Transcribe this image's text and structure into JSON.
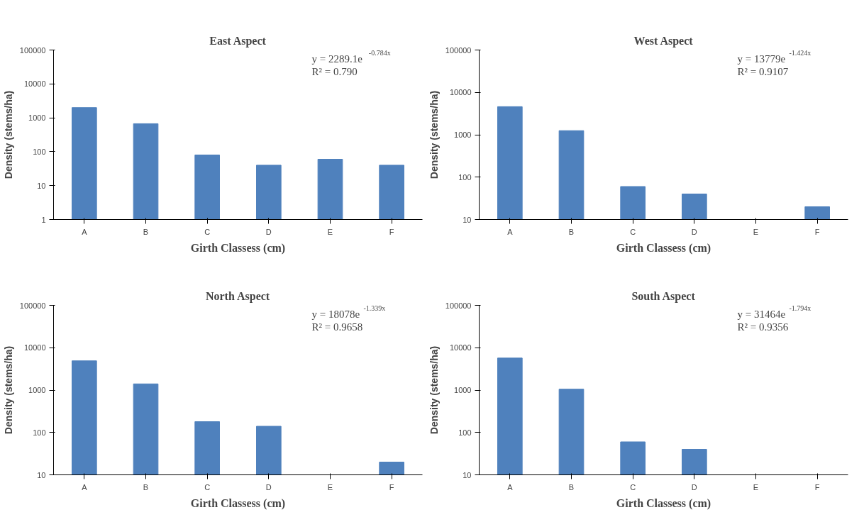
{
  "chart_data": [
    {
      "type": "bar",
      "title": "East Aspect",
      "xlabel": "Girth Classess (cm)",
      "ylabel": "Density (stems/ha)",
      "categories": [
        "A",
        "B",
        "C",
        "D",
        "E",
        "F"
      ],
      "log": true,
      "grid": false,
      "legend": false,
      "series": [
        {
          "color": "#4f81bd",
          "values": [
            2000,
            670,
            80,
            40,
            60,
            40
          ]
        }
      ],
      "ylim": [
        1,
        100000
      ],
      "yticks": [
        1,
        10,
        100,
        1000,
        10000,
        100000
      ],
      "annotations": [
        "y = 2289.1e$^{-0.784x}$",
        "R² = 0.790"
      ]
    },
    {
      "type": "bar",
      "title": "West Aspect",
      "xlabel": "Girth Classess (cm)",
      "ylabel": "Density (stems/ha)",
      "categories": [
        "A",
        "B",
        "C",
        "D",
        "E",
        "F"
      ],
      "log": true,
      "grid": false,
      "legend": false,
      "series": [
        {
          "color": "#4f81bd",
          "values": [
            4600,
            1250,
            60,
            40,
            null,
            20
          ]
        }
      ],
      "ylim": [
        10,
        100000
      ],
      "yticks": [
        10,
        100,
        1000,
        10000,
        100000
      ],
      "annotations": [
        "y = 13779e$^{-1.424x}$",
        "R² = 0.9107"
      ]
    },
    {
      "type": "bar",
      "title": "North Aspect",
      "xlabel": "Girth Classess (cm)",
      "ylabel": "Density (stems/ha)",
      "categories": [
        "A",
        "B",
        "C",
        "D",
        "E",
        "F"
      ],
      "log": true,
      "grid": false,
      "legend": false,
      "series": [
        {
          "color": "#4f81bd",
          "values": [
            4900,
            1400,
            180,
            140,
            null,
            20
          ]
        }
      ],
      "ylim": [
        10,
        100000
      ],
      "yticks": [
        10,
        100,
        1000,
        10000,
        100000
      ],
      "annotations": [
        "y = 18078e$^{-1.339x}$",
        "R² = 0.9658"
      ]
    },
    {
      "type": "bar",
      "title": "South Aspect",
      "xlabel": "Girth Classess (cm)",
      "ylabel": "Density (stems/ha)",
      "categories": [
        "A",
        "B",
        "C",
        "D",
        "E",
        "F"
      ],
      "log": true,
      "grid": false,
      "legend": false,
      "series": [
        {
          "color": "#4f81bd",
          "values": [
            5700,
            1050,
            60,
            40,
            null,
            null
          ]
        }
      ],
      "ylim": [
        10,
        100000
      ],
      "yticks": [
        10,
        100,
        1000,
        10000,
        100000
      ],
      "annotations": [
        "y = 31464e$^{-1.794x}$",
        "R² = 0.9356"
      ]
    }
  ]
}
